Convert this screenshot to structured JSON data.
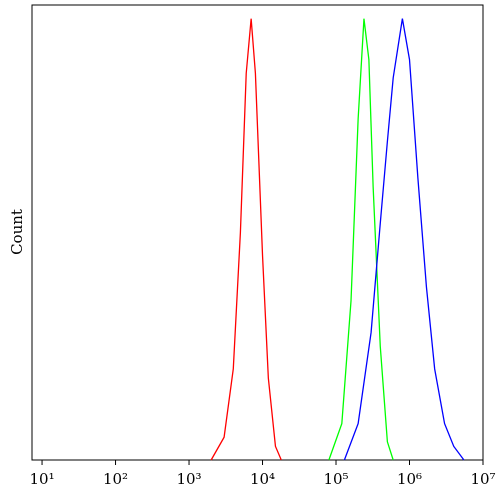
{
  "chart_data": {
    "type": "line",
    "y_label": "Count",
    "x_scale": "log",
    "xlim": [
      7.3,
      10000000
    ],
    "ylim": [
      0,
      100
    ],
    "xticks": [
      {
        "value": 10,
        "label": "10¹"
      },
      {
        "value": 100,
        "label": "10²"
      },
      {
        "value": 1000,
        "label": "10³"
      },
      {
        "value": 10000,
        "label": "10⁴"
      },
      {
        "value": 100000,
        "label": "10⁵"
      },
      {
        "value": 1000000,
        "label": "10⁶"
      },
      {
        "value": 10000000,
        "label": "10⁷"
      }
    ],
    "series": [
      {
        "color": "#ff0000",
        "x": [
          2000,
          3000,
          4000,
          5000,
          6000,
          7000,
          8000,
          10000,
          12000,
          15000,
          18000
        ],
        "values": [
          0,
          5,
          20,
          50,
          85,
          97,
          85,
          45,
          18,
          3,
          0
        ]
      },
      {
        "color": "#00ff00",
        "x": [
          80000,
          120000,
          160000,
          200000,
          240000,
          280000,
          320000,
          400000,
          500000,
          600000
        ],
        "values": [
          0,
          8,
          35,
          75,
          97,
          88,
          60,
          25,
          4,
          0
        ]
      },
      {
        "color": "#0000ff",
        "x": [
          130000,
          200000,
          300000,
          400000,
          500000,
          600000,
          800000,
          1000000,
          1300000,
          1700000,
          2200000,
          3000000,
          4000000,
          5500000
        ],
        "values": [
          0,
          8,
          28,
          52,
          70,
          84,
          97,
          88,
          62,
          38,
          20,
          8,
          3,
          0
        ]
      }
    ]
  }
}
